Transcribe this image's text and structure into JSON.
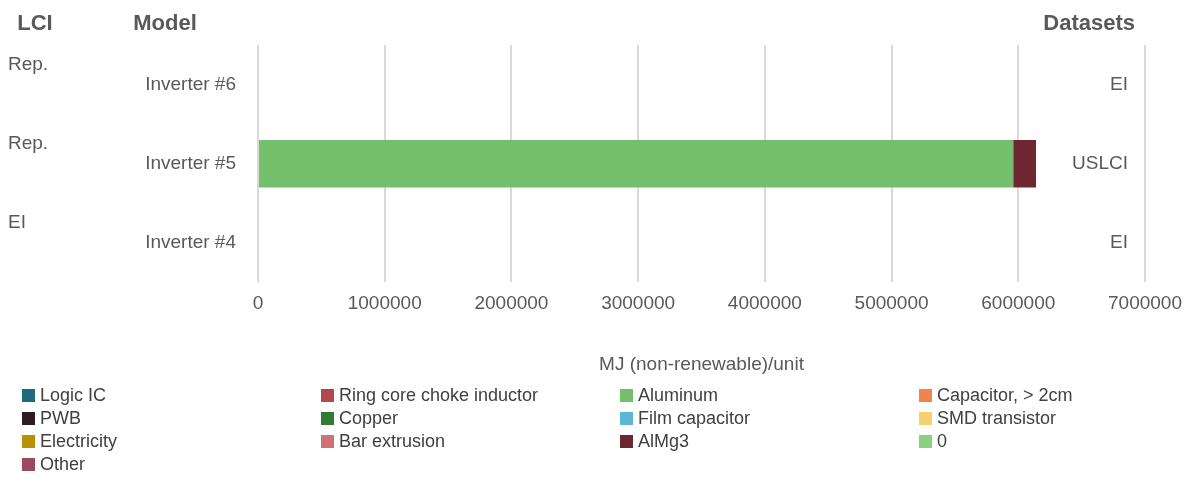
{
  "chart_data": {
    "type": "bar",
    "orientation": "horizontal",
    "stacked": true,
    "categories": [
      "Inverter #6",
      "Inverter #5",
      "Inverter #4"
    ],
    "series": [
      {
        "name": "Logic IC",
        "color": "#1f6b7a",
        "values": [
          0,
          0,
          0
        ]
      },
      {
        "name": "Ring core choke inductor",
        "color": "#b5464f",
        "values": [
          0,
          0,
          0
        ]
      },
      {
        "name": "Aluminum",
        "color": "#74bf6b",
        "values": [
          0,
          5960000,
          0
        ]
      },
      {
        "name": "Capacitor, > 2cm",
        "color": "#f0844c",
        "values": [
          0,
          0,
          0
        ]
      },
      {
        "name": "PWB",
        "color": "#2e1b24",
        "values": [
          0,
          0,
          0
        ]
      },
      {
        "name": "Copper",
        "color": "#2e7d32",
        "values": [
          0,
          0,
          0
        ]
      },
      {
        "name": "Film capacitor",
        "color": "#5bb8d4",
        "values": [
          0,
          0,
          0
        ]
      },
      {
        "name": "SMD transistor",
        "color": "#f5d06f",
        "values": [
          0,
          0,
          0
        ]
      },
      {
        "name": "Electricity",
        "color": "#b8900a",
        "values": [
          0,
          0,
          0
        ]
      },
      {
        "name": "Bar extrusion",
        "color": "#d07078",
        "values": [
          0,
          0,
          0
        ]
      },
      {
        "name": "AlMg3",
        "color": "#6e2630",
        "values": [
          0,
          180000,
          0
        ]
      },
      {
        "name": "0",
        "color": "#8ccf7e",
        "values": [
          0,
          0,
          0
        ]
      },
      {
        "name": "Other",
        "color": "#9a4a5e",
        "values": [
          0,
          0,
          0
        ]
      }
    ],
    "xlabel": "MJ (non-renewable)/unit",
    "xlim": [
      0,
      7000000
    ],
    "xticks": [
      0,
      1000000,
      2000000,
      3000000,
      4000000,
      5000000,
      6000000,
      7000000
    ],
    "grid": "x",
    "legend": "bottom",
    "annotations": [
      "LCI",
      "Model",
      "Datasets",
      "Rep.",
      "Rep.",
      "EI",
      "EI",
      "USLCI",
      "EI"
    ]
  }
}
